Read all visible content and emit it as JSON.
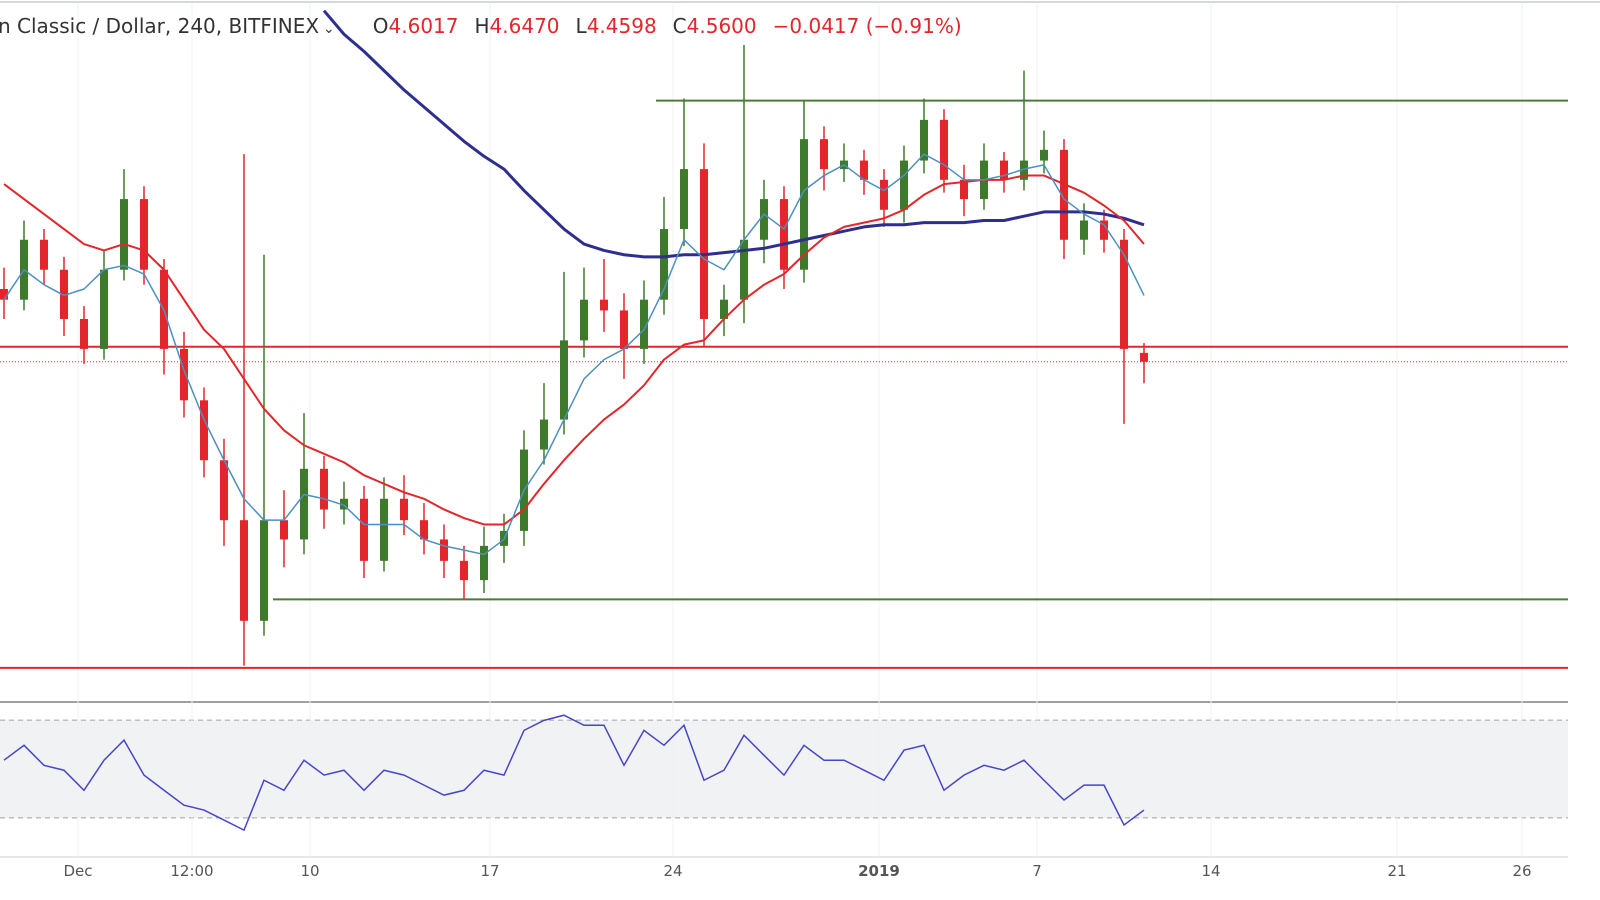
{
  "chart_data": {
    "type": "candlestick",
    "title": "n Classic / Dollar, 240, BITFINEX",
    "ohlc_header": [
      {
        "label": "O",
        "value": "4.6017"
      },
      {
        "label": "H",
        "value": "4.6470"
      },
      {
        "label": "L",
        "value": "4.4598"
      },
      {
        "label": "C",
        "value": "4.5600"
      }
    ],
    "change": "−0.0417 (−0.91%)",
    "colors": {
      "up": "#3d7a2c",
      "down": "#e2262b"
    },
    "xlim": [
      -0.2,
      78.2
    ],
    "ylim": [
      2.98,
      6.25
    ],
    "xticks": [
      {
        "value": 3.7,
        "label": "Dec"
      },
      {
        "value": 9.4,
        "label": "12:00"
      },
      {
        "value": 15.3,
        "label": "10"
      },
      {
        "value": 24.3,
        "label": "17"
      },
      {
        "value": 33.45,
        "label": "24"
      },
      {
        "value": 43.75,
        "label": "2019"
      },
      {
        "value": 51.65,
        "label": "7"
      },
      {
        "value": 60.35,
        "label": "14"
      },
      {
        "value": 69.65,
        "label": "21"
      },
      {
        "value": 75.9,
        "label": "26"
      }
    ],
    "x": [
      0,
      1,
      2,
      3,
      4,
      5,
      6,
      7,
      8,
      9,
      10,
      11,
      12,
      13,
      14,
      15,
      16,
      17,
      18,
      19,
      20,
      21,
      22,
      23,
      24,
      25,
      26,
      27,
      28,
      29,
      30,
      31,
      32,
      33,
      34,
      35,
      36,
      37,
      38,
      39,
      40,
      41,
      42,
      43,
      44,
      45,
      46,
      47,
      48,
      49,
      50,
      51,
      52,
      53,
      54,
      55,
      56,
      57
    ],
    "open": [
      4.9,
      4.85,
      5.13,
      4.99,
      4.76,
      4.62,
      4.99,
      5.32,
      4.99,
      4.62,
      4.38,
      4.1,
      3.82,
      3.35,
      3.82,
      3.73,
      4.06,
      3.87,
      3.92,
      3.63,
      3.92,
      3.82,
      3.73,
      3.63,
      3.54,
      3.7,
      3.77,
      4.15,
      4.29,
      4.66,
      4.85,
      4.8,
      4.62,
      4.85,
      5.18,
      5.46,
      4.76,
      4.85,
      5.13,
      5.32,
      4.99,
      5.6,
      5.46,
      5.5,
      5.41,
      5.27,
      5.5,
      5.69,
      5.41,
      5.32,
      5.5,
      5.41,
      5.5,
      5.55,
      5.13,
      5.22,
      5.13,
      4.6017
    ],
    "high": [
      5.0,
      5.22,
      5.18,
      5.05,
      4.82,
      5.08,
      5.46,
      5.38,
      5.04,
      4.7,
      4.44,
      4.2,
      5.53,
      5.06,
      3.96,
      4.32,
      4.12,
      4.0,
      3.98,
      4.02,
      4.03,
      3.9,
      3.8,
      3.7,
      3.79,
      3.85,
      4.24,
      4.46,
      4.98,
      5.0,
      5.04,
      4.88,
      4.94,
      5.33,
      5.79,
      5.58,
      4.92,
      6.04,
      5.41,
      5.38,
      5.78,
      5.66,
      5.58,
      5.55,
      5.46,
      5.57,
      5.79,
      5.74,
      5.48,
      5.58,
      5.54,
      5.92,
      5.64,
      5.6,
      5.3,
      5.27,
      5.18,
      4.647
    ],
    "low": [
      4.76,
      4.8,
      4.92,
      4.68,
      4.55,
      4.57,
      4.94,
      4.92,
      4.5,
      4.3,
      4.02,
      3.7,
      3.14,
      3.28,
      3.6,
      3.66,
      3.78,
      3.8,
      3.55,
      3.58,
      3.75,
      3.66,
      3.55,
      3.45,
      3.48,
      3.62,
      3.7,
      4.08,
      4.22,
      4.58,
      4.7,
      4.48,
      4.55,
      4.78,
      5.1,
      4.63,
      4.68,
      4.74,
      5.02,
      4.9,
      4.93,
      5.36,
      5.4,
      5.34,
      5.19,
      5.21,
      5.44,
      5.35,
      5.24,
      5.27,
      5.35,
      5.36,
      5.44,
      5.04,
      5.06,
      5.07,
      4.27,
      4.4598
    ],
    "close": [
      4.85,
      5.13,
      4.99,
      4.76,
      4.62,
      4.99,
      5.32,
      4.99,
      4.62,
      4.38,
      4.1,
      3.82,
      3.35,
      3.82,
      3.73,
      4.06,
      3.87,
      3.92,
      3.63,
      3.92,
      3.82,
      3.73,
      3.63,
      3.54,
      3.7,
      3.77,
      4.15,
      4.29,
      4.66,
      4.85,
      4.8,
      4.62,
      4.85,
      5.18,
      5.46,
      4.76,
      4.85,
      5.13,
      5.32,
      4.99,
      5.6,
      5.46,
      5.5,
      5.41,
      5.27,
      5.5,
      5.69,
      5.41,
      5.32,
      5.5,
      5.41,
      5.5,
      5.55,
      5.13,
      5.22,
      5.13,
      4.62,
      4.56
    ],
    "moving_averages": [
      {
        "color": "#2e2e8f",
        "width": 3,
        "values": [
          null,
          null,
          null,
          null,
          null,
          null,
          null,
          null,
          null,
          null,
          null,
          null,
          null,
          null,
          null,
          null,
          6.2,
          6.09,
          6.01,
          5.92,
          5.83,
          5.75,
          5.67,
          5.59,
          5.52,
          5.46,
          5.36,
          5.27,
          5.18,
          5.11,
          5.08,
          5.06,
          5.05,
          5.05,
          5.06,
          5.06,
          5.07,
          5.08,
          5.09,
          5.11,
          5.13,
          5.15,
          5.17,
          5.19,
          5.2,
          5.2,
          5.21,
          5.21,
          5.21,
          5.22,
          5.22,
          5.24,
          5.26,
          5.26,
          5.26,
          5.25,
          5.23,
          5.2
        ]
      },
      {
        "color": "#e2262b",
        "width": 2,
        "values": [
          5.39,
          5.32,
          5.25,
          5.18,
          5.11,
          5.08,
          5.11,
          5.08,
          4.99,
          4.85,
          4.71,
          4.62,
          4.48,
          4.34,
          4.24,
          4.17,
          4.13,
          4.09,
          4.03,
          3.99,
          3.95,
          3.92,
          3.87,
          3.83,
          3.8,
          3.8,
          3.87,
          3.99,
          4.1,
          4.2,
          4.29,
          4.36,
          4.45,
          4.57,
          4.64,
          4.66,
          4.76,
          4.85,
          4.92,
          4.97,
          5.06,
          5.14,
          5.19,
          5.21,
          5.23,
          5.27,
          5.34,
          5.39,
          5.4,
          5.41,
          5.41,
          5.43,
          5.43,
          5.39,
          5.35,
          5.29,
          5.22,
          5.11
        ]
      },
      {
        "color": "#4f8fbf",
        "width": 1.5,
        "values": [
          4.85,
          4.99,
          4.92,
          4.87,
          4.9,
          4.99,
          5.01,
          4.97,
          4.8,
          4.52,
          4.29,
          4.1,
          3.92,
          3.82,
          3.82,
          3.94,
          3.92,
          3.89,
          3.8,
          3.8,
          3.8,
          3.73,
          3.7,
          3.68,
          3.66,
          3.73,
          3.96,
          4.1,
          4.29,
          4.48,
          4.57,
          4.62,
          4.71,
          4.9,
          5.13,
          5.04,
          4.99,
          5.13,
          5.25,
          5.18,
          5.36,
          5.43,
          5.48,
          5.41,
          5.36,
          5.43,
          5.53,
          5.48,
          5.41,
          5.41,
          5.43,
          5.46,
          5.48,
          5.32,
          5.25,
          5.2,
          5.06,
          4.87
        ]
      }
    ],
    "levels": [
      {
        "value": 5.78,
        "x_start": 32.6,
        "color": "#4d7a3a"
      },
      {
        "value": 4.63,
        "x_start": -0.2,
        "color": "#e2262b"
      },
      {
        "value": 3.45,
        "x_start": 13.45,
        "color": "#4d7a3a"
      },
      {
        "value": 3.13,
        "x_start": -0.2,
        "color": "#e2262b"
      }
    ],
    "rsi": {
      "color": "#4646c8",
      "ylim": [
        14,
        77
      ],
      "band": [
        30,
        70
      ],
      "values": [
        53.6,
        59.7,
        51.5,
        49.5,
        41.3,
        53.6,
        61.8,
        47.5,
        41.3,
        35.2,
        33.2,
        29.1,
        25,
        45.4,
        41.3,
        53.6,
        47.5,
        49.5,
        41.3,
        49.5,
        47.5,
        43.4,
        39.3,
        41.3,
        49.5,
        47.5,
        65.8,
        69.9,
        72,
        67.9,
        67.9,
        51.5,
        65.8,
        59.7,
        67.9,
        45.4,
        49.5,
        63.8,
        55.6,
        47.5,
        59.7,
        53.6,
        53.6,
        49.5,
        45.4,
        57.7,
        59.7,
        41.3,
        47.5,
        51.5,
        49.5,
        53.6,
        45.4,
        37.3,
        43.4,
        43.4,
        27.1,
        33.2
      ]
    }
  }
}
